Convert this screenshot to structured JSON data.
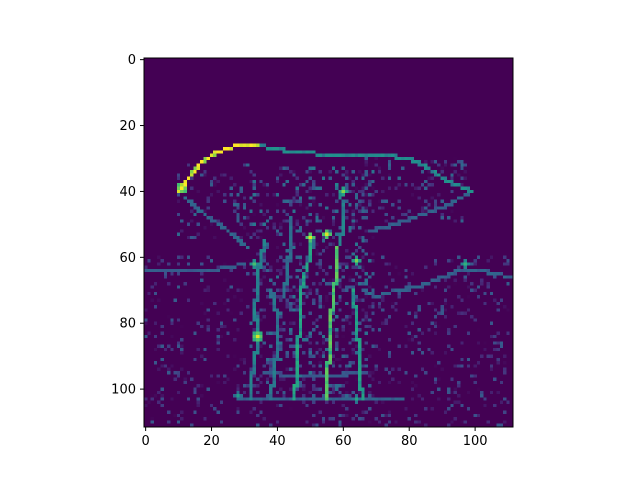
{
  "chart_data": {
    "type": "heatmap",
    "colormap": "viridis",
    "image_size": [
      112,
      112
    ],
    "value_range": [
      0,
      1
    ],
    "xlim": [
      -0.5,
      111.5
    ],
    "ylim": [
      111.5,
      -0.5
    ],
    "x_ticks": [
      0,
      20,
      40,
      60,
      80,
      100
    ],
    "y_ticks": [
      0,
      20,
      40,
      60,
      80,
      100
    ],
    "x_tick_labels": [
      "0",
      "20",
      "40",
      "60",
      "80",
      "100"
    ],
    "y_tick_labels": [
      "0",
      "20",
      "40",
      "60",
      "80",
      "100"
    ],
    "title": "",
    "xlabel": "",
    "ylabel": "",
    "background_level": 0.0,
    "features": [
      {
        "type": "polyline",
        "intensity": 0.92,
        "width": 1.1,
        "points": [
          [
            10,
            40
          ],
          [
            13,
            36
          ],
          [
            17,
            31
          ],
          [
            22,
            28
          ],
          [
            28,
            26
          ],
          [
            34,
            26
          ]
        ]
      },
      {
        "type": "polyline",
        "intensity": 0.45,
        "width": 1.3,
        "points": [
          [
            34,
            26
          ],
          [
            45,
            28
          ],
          [
            58,
            29
          ],
          [
            72,
            29
          ],
          [
            80,
            30
          ],
          [
            86,
            33
          ],
          [
            92,
            37
          ],
          [
            99,
            40
          ]
        ]
      },
      {
        "type": "polyline",
        "intensity": 0.32,
        "width": 1.0,
        "points": [
          [
            12,
            42
          ],
          [
            18,
            47
          ],
          [
            25,
            52
          ],
          [
            31,
            57
          ]
        ]
      },
      {
        "type": "polyline",
        "intensity": 0.3,
        "width": 1.0,
        "points": [
          [
            99,
            40
          ],
          [
            92,
            44
          ],
          [
            84,
            47
          ],
          [
            76,
            50
          ],
          [
            68,
            52
          ]
        ]
      },
      {
        "type": "polyline",
        "intensity": 0.42,
        "width": 1.2,
        "points": [
          [
            36,
            55
          ],
          [
            35,
            60
          ],
          [
            34,
            65
          ],
          [
            34,
            70
          ],
          [
            33,
            76
          ],
          [
            34,
            82
          ],
          [
            34,
            86
          ],
          [
            33,
            92
          ],
          [
            32,
            97
          ],
          [
            32,
            103
          ]
        ]
      },
      {
        "type": "polyline",
        "intensity": 0.55,
        "width": 1.1,
        "points": [
          [
            50,
            53
          ],
          [
            50,
            60
          ],
          [
            48,
            66
          ],
          [
            47,
            72
          ],
          [
            47,
            80
          ],
          [
            46,
            88
          ],
          [
            46,
            95
          ],
          [
            45,
            103
          ]
        ]
      },
      {
        "type": "polyline",
        "intensity": 0.68,
        "width": 1.2,
        "points": [
          [
            58,
            57
          ],
          [
            58,
            64
          ],
          [
            57,
            72
          ],
          [
            56,
            80
          ],
          [
            56,
            88
          ],
          [
            55,
            95
          ],
          [
            55,
            103
          ]
        ]
      },
      {
        "type": "polyline",
        "intensity": 0.52,
        "width": 1.0,
        "points": [
          [
            63,
            70
          ],
          [
            64,
            80
          ],
          [
            65,
            90
          ],
          [
            65,
            97
          ],
          [
            66,
            103
          ]
        ]
      },
      {
        "type": "polyline",
        "intensity": 0.38,
        "width": 1.0,
        "points": [
          [
            38,
            70
          ],
          [
            40,
            78
          ],
          [
            40,
            86
          ],
          [
            39,
            95
          ],
          [
            38,
            103
          ]
        ]
      },
      {
        "type": "polyline",
        "intensity": 0.42,
        "width": 1.0,
        "points": [
          [
            58,
            38
          ],
          [
            60,
            44
          ],
          [
            60,
            50
          ],
          [
            59,
            56
          ]
        ]
      },
      {
        "type": "polyline",
        "intensity": 0.35,
        "width": 1.0,
        "points": [
          [
            44,
            48
          ],
          [
            44,
            56
          ],
          [
            43,
            64
          ],
          [
            42,
            72
          ]
        ]
      },
      {
        "type": "polyline",
        "intensity": 0.3,
        "width": 1.0,
        "points": [
          [
            66,
            70
          ],
          [
            70,
            72
          ],
          [
            76,
            70
          ],
          [
            82,
            69
          ],
          [
            88,
            67
          ],
          [
            95,
            64
          ],
          [
            102,
            64
          ],
          [
            111,
            66
          ]
        ]
      },
      {
        "type": "polyline",
        "intensity": 0.28,
        "width": 1.0,
        "points": [
          [
            0,
            64
          ],
          [
            10,
            64
          ],
          [
            20,
            64
          ],
          [
            30,
            62
          ]
        ]
      },
      {
        "type": "polyline",
        "intensity": 0.3,
        "width": 1.0,
        "points": [
          [
            28,
            103
          ],
          [
            40,
            103
          ],
          [
            50,
            103
          ],
          [
            62,
            103
          ],
          [
            70,
            103
          ],
          [
            78,
            103
          ]
        ]
      },
      {
        "type": "polyline",
        "intensity": 0.26,
        "width": 1.0,
        "points": [
          [
            36,
            95
          ],
          [
            46,
            96
          ],
          [
            56,
            96
          ],
          [
            66,
            95
          ]
        ]
      },
      {
        "type": "blob",
        "intensity": 1.0,
        "radius": 1.6,
        "center": [
          11,
          39
        ]
      },
      {
        "type": "blob",
        "intensity": 0.95,
        "radius": 1.5,
        "center": [
          34,
          84
        ]
      },
      {
        "type": "blob",
        "intensity": 0.95,
        "radius": 1.4,
        "center": [
          50,
          54
        ]
      },
      {
        "type": "blob",
        "intensity": 0.95,
        "radius": 1.4,
        "center": [
          55,
          53
        ]
      },
      {
        "type": "blob",
        "intensity": 0.82,
        "radius": 1.2,
        "center": [
          60,
          40
        ]
      },
      {
        "type": "blob",
        "intensity": 0.8,
        "radius": 1.2,
        "center": [
          64,
          61
        ]
      },
      {
        "type": "blob",
        "intensity": 0.7,
        "radius": 1.1,
        "center": [
          33,
          62
        ]
      },
      {
        "type": "blob",
        "intensity": 0.65,
        "radius": 1.1,
        "center": [
          97,
          62
        ]
      },
      {
        "type": "blob",
        "intensity": 0.55,
        "radius": 1.0,
        "center": [
          28,
          102
        ]
      },
      {
        "type": "blob",
        "intensity": 0.6,
        "radius": 1.0,
        "center": [
          64,
          103
        ]
      }
    ],
    "textured_regions": [
      {
        "x": [
          10,
          35
        ],
        "y": [
          32,
          55
        ],
        "density": 0.18,
        "max_intensity": 0.35
      },
      {
        "x": [
          60,
          98
        ],
        "y": [
          30,
          50
        ],
        "density": 0.2,
        "max_intensity": 0.35
      },
      {
        "x": [
          32,
          70
        ],
        "y": [
          33,
          103
        ],
        "density": 0.22,
        "max_intensity": 0.4
      },
      {
        "x": [
          0,
          111
        ],
        "y": [
          60,
          112
        ],
        "density": 0.12,
        "max_intensity": 0.3
      }
    ]
  }
}
